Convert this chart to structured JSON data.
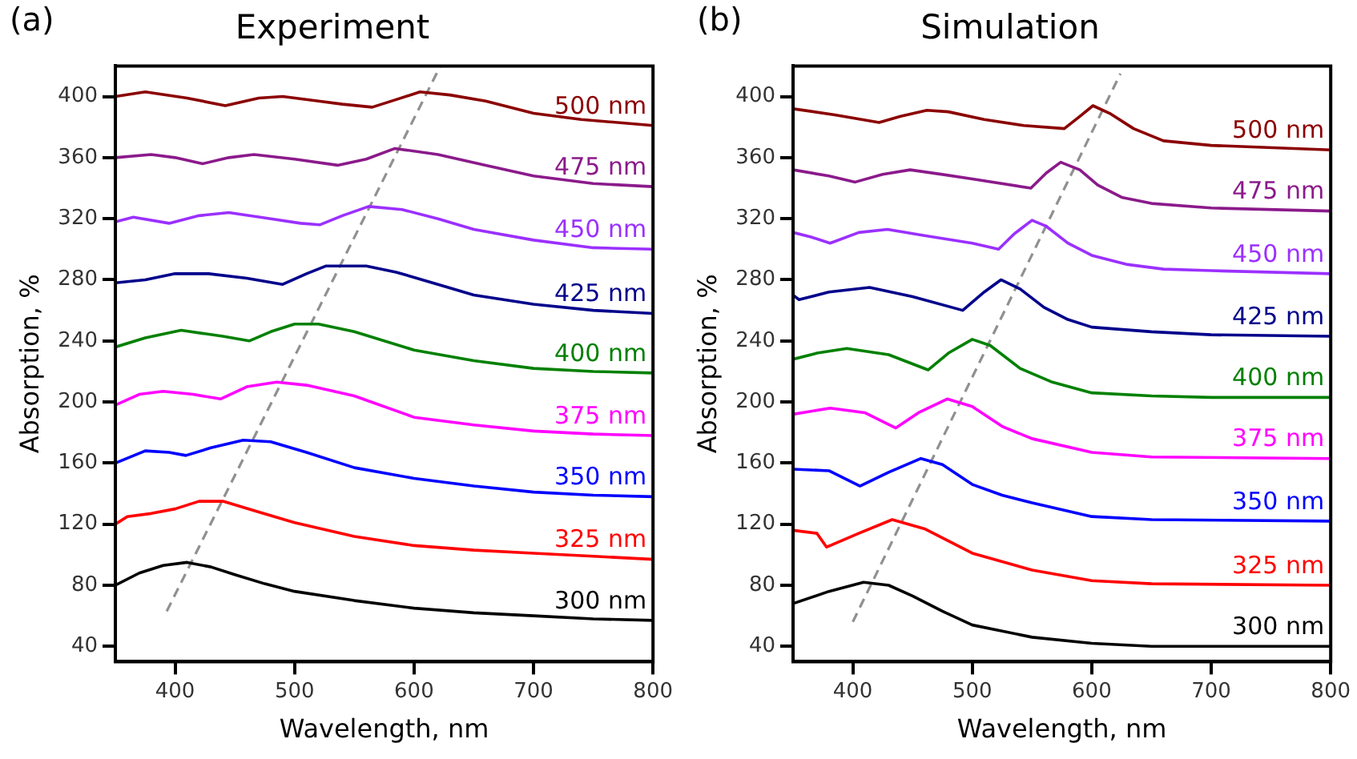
{
  "chart_data": [
    {
      "type": "line",
      "title": "Experiment",
      "xlabel": "Wavelength, nm",
      "ylabel": "Absorption, %",
      "annotations": [
        "(a)"
      ],
      "xlim": [
        350,
        800
      ],
      "xticks": [
        400,
        500,
        600,
        700,
        800
      ],
      "ylim": [
        30,
        420
      ],
      "yticks": [
        40,
        80,
        120,
        160,
        200,
        240,
        280,
        320,
        360,
        400
      ],
      "series": [
        {
          "name": "500 nm",
          "color": "#8b0000",
          "x": [
            350,
            375,
            410,
            442,
            470,
            490,
            520,
            540,
            565,
            585,
            605,
            630,
            660,
            700,
            740,
            800
          ],
          "values": [
            400,
            403,
            399,
            394,
            399,
            400,
            397,
            395,
            393,
            398,
            403,
            401,
            397,
            389,
            385,
            381
          ]
        },
        {
          "name": "475 nm",
          "color": "#8b1a8b",
          "x": [
            350,
            380,
            400,
            423,
            445,
            466,
            500,
            536,
            560,
            584,
            620,
            660,
            700,
            750,
            800
          ],
          "values": [
            360,
            362,
            360,
            356,
            360,
            362,
            359,
            355,
            359,
            366,
            362,
            355,
            348,
            343,
            341
          ]
        },
        {
          "name": "450 nm",
          "color": "#9b30ff",
          "x": [
            350,
            365,
            395,
            420,
            445,
            480,
            505,
            521,
            540,
            562,
            590,
            620,
            650,
            700,
            750,
            800
          ],
          "values": [
            318,
            321,
            317,
            322,
            324,
            320,
            317,
            316,
            322,
            328,
            326,
            320,
            313,
            306,
            301,
            300
          ]
        },
        {
          "name": "425 nm",
          "color": "#00008b",
          "x": [
            350,
            375,
            400,
            428,
            460,
            490,
            510,
            526,
            560,
            585,
            620,
            650,
            700,
            750,
            800
          ],
          "values": [
            278,
            280,
            284,
            284,
            281,
            277,
            284,
            289,
            289,
            285,
            277,
            270,
            264,
            260,
            258
          ]
        },
        {
          "name": "400 nm",
          "color": "#008000",
          "x": [
            350,
            375,
            405,
            440,
            462,
            480,
            500,
            520,
            550,
            600,
            650,
            700,
            750,
            800
          ],
          "values": [
            236,
            242,
            247,
            243,
            240,
            246,
            251,
            251,
            246,
            234,
            227,
            222,
            220,
            219
          ]
        },
        {
          "name": "375 nm",
          "color": "#ff00ff",
          "x": [
            350,
            370,
            390,
            415,
            438,
            460,
            485,
            510,
            550,
            600,
            650,
            700,
            750,
            800
          ],
          "values": [
            198,
            205,
            207,
            205,
            202,
            210,
            213,
            211,
            204,
            190,
            185,
            181,
            179,
            178
          ]
        },
        {
          "name": "350 nm",
          "color": "#0000ff",
          "x": [
            350,
            375,
            395,
            409,
            430,
            457,
            480,
            510,
            550,
            600,
            650,
            700,
            750,
            800
          ],
          "values": [
            160,
            168,
            167,
            165,
            170,
            175,
            174,
            167,
            157,
            150,
            145,
            141,
            139,
            138
          ]
        },
        {
          "name": "325 nm",
          "color": "#ff0000",
          "x": [
            350,
            360,
            380,
            400,
            420,
            440,
            470,
            500,
            550,
            600,
            650,
            700,
            750,
            800
          ],
          "values": [
            120,
            125,
            127,
            130,
            135,
            135,
            128,
            121,
            112,
            106,
            103,
            101,
            99,
            97
          ]
        },
        {
          "name": "300 nm",
          "color": "#000000",
          "x": [
            350,
            370,
            390,
            410,
            430,
            450,
            475,
            500,
            550,
            600,
            650,
            700,
            750,
            800
          ],
          "values": [
            80,
            88,
            93,
            95,
            92,
            87,
            81,
            76,
            70,
            65,
            62,
            60,
            58,
            57
          ]
        },
        {
          "type": "line",
          "color": "#909090",
          "line_style": "dashed",
          "x": [
            393,
            622
          ],
          "values": [
            63,
            420
          ]
        }
      ]
    },
    {
      "type": "line",
      "title": "Simulation",
      "xlabel": "Wavelength, nm",
      "ylabel": "Absorption, %",
      "annotations": [
        "(b)"
      ],
      "xlim": [
        350,
        800
      ],
      "xticks": [
        400,
        500,
        600,
        700,
        800
      ],
      "ylim": [
        30,
        420
      ],
      "yticks": [
        40,
        80,
        120,
        160,
        200,
        240,
        280,
        320,
        360,
        400
      ],
      "series": [
        {
          "name": "500 nm",
          "color": "#8b0000",
          "x": [
            350,
            385,
            422,
            440,
            462,
            480,
            510,
            543,
            577,
            590,
            601,
            615,
            635,
            660,
            700,
            800
          ],
          "values": [
            392,
            388,
            383,
            387,
            391,
            390,
            385,
            381,
            379,
            387,
            394,
            389,
            379,
            371,
            368,
            365
          ]
        },
        {
          "name": "475 nm",
          "color": "#8b1a8b",
          "x": [
            350,
            380,
            402,
            425,
            448,
            475,
            500,
            549,
            562,
            574,
            590,
            605,
            625,
            650,
            700,
            800
          ],
          "values": [
            352,
            348,
            344,
            349,
            352,
            349,
            346,
            340,
            350,
            357,
            352,
            342,
            334,
            330,
            327,
            325
          ]
        },
        {
          "name": "450 nm",
          "color": "#9b30ff",
          "x": [
            350,
            365,
            381,
            405,
            429,
            460,
            500,
            522,
            535,
            550,
            562,
            580,
            600,
            630,
            660,
            700,
            800
          ],
          "values": [
            311,
            308,
            304,
            311,
            313,
            309,
            304,
            300,
            310,
            319,
            315,
            304,
            296,
            290,
            287,
            286,
            284
          ]
        },
        {
          "name": "425 nm",
          "color": "#00008b",
          "x": [
            350,
            355,
            380,
            414,
            450,
            492,
            510,
            524,
            540,
            560,
            580,
            600,
            650,
            700,
            800
          ],
          "values": [
            270,
            267,
            272,
            275,
            269,
            260,
            272,
            280,
            274,
            262,
            254,
            249,
            246,
            244,
            243
          ]
        },
        {
          "name": "400 nm",
          "color": "#008000",
          "x": [
            350,
            370,
            395,
            430,
            463,
            480,
            500,
            515,
            540,
            567,
            600,
            650,
            700,
            800
          ],
          "values": [
            228,
            232,
            235,
            231,
            221,
            232,
            241,
            237,
            222,
            213,
            206,
            204,
            203,
            203
          ]
        },
        {
          "name": "375 nm",
          "color": "#ff00ff",
          "x": [
            350,
            381,
            410,
            436,
            455,
            479,
            500,
            525,
            550,
            600,
            650,
            800
          ],
          "values": [
            192,
            196,
            193,
            183,
            193,
            202,
            197,
            184,
            176,
            167,
            164,
            163
          ]
        },
        {
          "name": "350 nm",
          "color": "#0000ff",
          "x": [
            350,
            380,
            406,
            430,
            457,
            475,
            500,
            525,
            550,
            600,
            650,
            800
          ],
          "values": [
            156,
            155,
            145,
            154,
            163,
            159,
            146,
            139,
            134,
            125,
            123,
            122
          ]
        },
        {
          "name": "325 nm",
          "color": "#ff0000",
          "x": [
            350,
            370,
            378,
            405,
            433,
            460,
            500,
            550,
            600,
            650,
            800
          ],
          "values": [
            116,
            114,
            105,
            114,
            123,
            117,
            101,
            90,
            83,
            81,
            80
          ]
        },
        {
          "name": "300 nm",
          "color": "#000000",
          "x": [
            350,
            380,
            409,
            430,
            450,
            475,
            500,
            550,
            600,
            650,
            800
          ],
          "values": [
            68,
            76,
            82,
            80,
            73,
            63,
            54,
            46,
            42,
            40,
            40
          ]
        },
        {
          "type": "line",
          "color": "#909090",
          "line_style": "dashed",
          "x": [
            400,
            624
          ],
          "values": [
            56,
            415
          ]
        }
      ]
    }
  ]
}
